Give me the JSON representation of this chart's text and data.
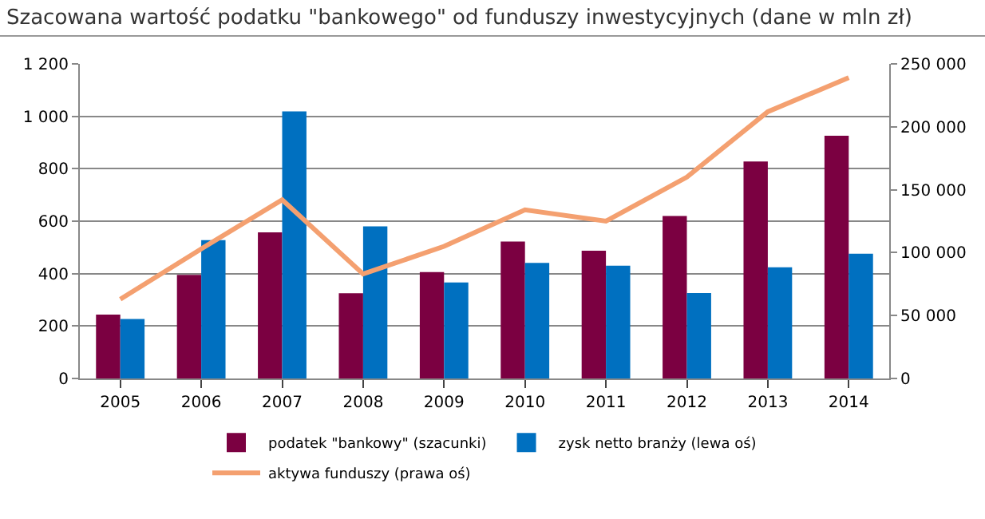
{
  "chart_data": {
    "type": "bar",
    "title": "Szacowana wartość podatku \"bankowego\" od funduszy inwestycyjnych (dane w mln zł)",
    "categories": [
      "2005",
      "2006",
      "2007",
      "2008",
      "2009",
      "2010",
      "2011",
      "2012",
      "2013",
      "2014"
    ],
    "series": [
      {
        "name": "podatek \"bankowy\" (szacunki)",
        "color": "#7b0041",
        "values": [
          244,
          395,
          557,
          325,
          406,
          522,
          487,
          620,
          828,
          926
        ]
      },
      {
        "name": "zysk netto branży (lewa oś)",
        "color": "#0070c0",
        "values": [
          227,
          528,
          1019,
          580,
          366,
          441,
          430,
          326,
          424,
          476
        ]
      },
      {
        "name": "aktywa funduszy (prawa oś)",
        "color": "#f4a070",
        "type": "line",
        "axis": "y2",
        "values": [
          63000,
          103000,
          142000,
          83000,
          105000,
          134000,
          125000,
          160000,
          212000,
          239000
        ]
      }
    ],
    "ylim": [
      0,
      1200
    ],
    "yticks": [
      0,
      200,
      400,
      600,
      800,
      {
        "value": 1000,
        "label": "1 000"
      },
      {
        "value": 1200,
        "label": "1 200"
      }
    ],
    "y2lim": [
      0,
      250000
    ],
    "y2ticks": [
      0,
      {
        "value": 50000,
        "label": "50 000"
      },
      {
        "value": 100000,
        "label": "100 000"
      },
      {
        "value": 150000,
        "label": "150 000"
      },
      {
        "value": 200000,
        "label": "200 000"
      },
      {
        "value": 250000,
        "label": "250 000"
      }
    ],
    "grid": "y",
    "legend": "bottom",
    "marker": "none",
    "line_style": "solid"
  }
}
